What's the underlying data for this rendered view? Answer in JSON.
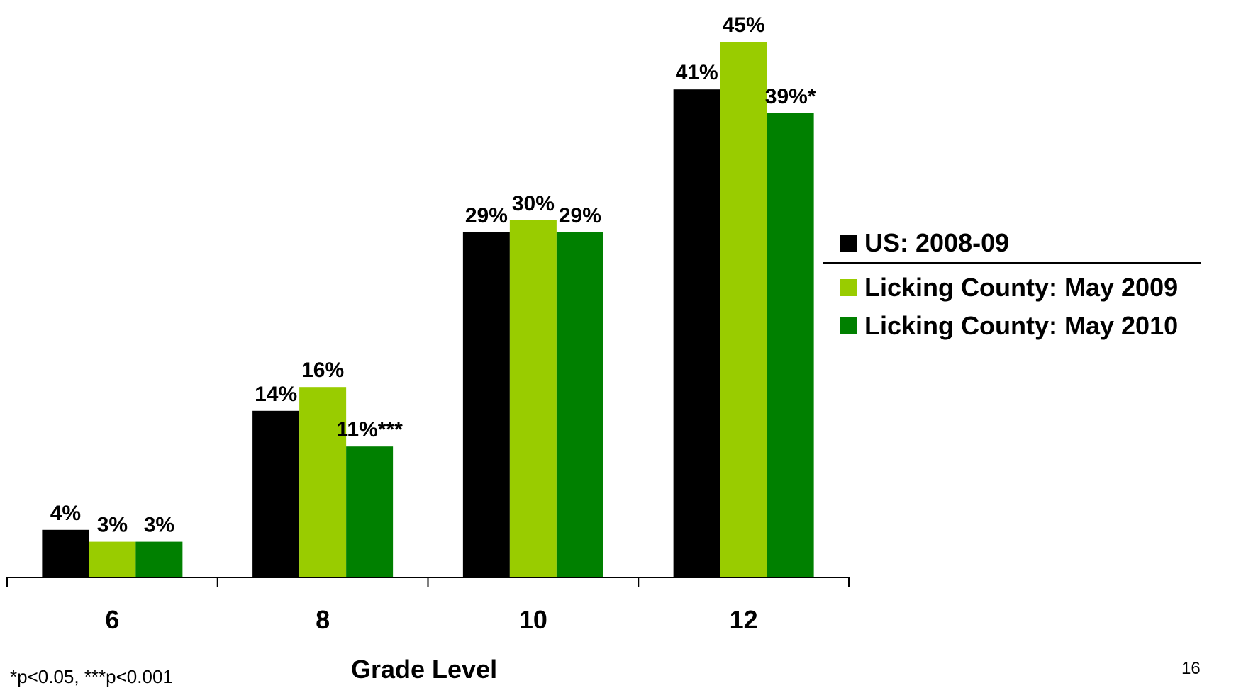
{
  "chart_data": {
    "type": "bar",
    "xlabel": "Grade Level",
    "ylabel": "",
    "ylim": [
      0,
      45
    ],
    "grid": false,
    "legend_position": "right",
    "categories": [
      "6",
      "8",
      "10",
      "12"
    ],
    "series": [
      {
        "name": "US: 2008-09",
        "color": "#000000",
        "values": [
          4,
          14,
          29,
          41
        ],
        "labels": [
          "4%",
          "14%",
          "29%",
          "41%"
        ]
      },
      {
        "name": "Licking County: May 2009",
        "color": "#99cc00",
        "values": [
          3,
          16,
          30,
          45
        ],
        "labels": [
          "3%",
          "16%",
          "30%",
          "45%"
        ]
      },
      {
        "name": "Licking County: May 2010",
        "color": "#008000",
        "values": [
          3,
          11,
          29,
          39
        ],
        "labels": [
          "3%",
          "11%***",
          "29%",
          "39%*"
        ]
      }
    ]
  },
  "footnote": "*p<0.05, ***p<0.001",
  "page_number": "16"
}
